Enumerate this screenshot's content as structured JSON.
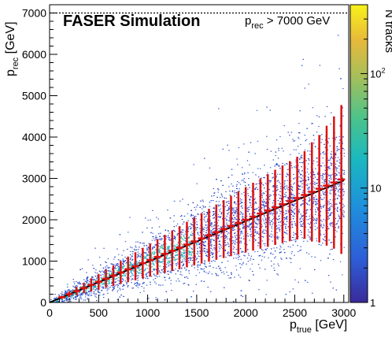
{
  "chart_data": {
    "type": "scatter",
    "title": "FASER Simulation",
    "annotation": {
      "text_main": "p",
      "text_sub": "rec",
      "text_rest": " > 7000 GeV"
    },
    "xlabel": {
      "main": "p",
      "sub": "true",
      "unit": " [GeV]"
    },
    "ylabel": {
      "main": "p",
      "sub": "rec",
      "unit": " [GeV]"
    },
    "xlim": [
      0,
      3050
    ],
    "ylim": [
      0,
      7200
    ],
    "x_ticks": [
      0,
      500,
      1000,
      1500,
      2000,
      2500,
      3000
    ],
    "y_ticks": [
      0,
      1000,
      2000,
      3000,
      4000,
      5000,
      6000,
      7000
    ],
    "cutoff_line_y": 7000,
    "colorbar": {
      "label": "N tracks",
      "scale": "log",
      "range": [
        1,
        400
      ],
      "ticks": [
        {
          "value": 1,
          "label": "1"
        },
        {
          "value": 10,
          "label": "10"
        },
        {
          "value": 100,
          "label": "10",
          "exp": "2"
        }
      ]
    },
    "fit_line": {
      "x": [
        0,
        3000
      ],
      "y": [
        0,
        2950
      ]
    },
    "profile": {
      "x": [
        125,
        200,
        275,
        350,
        425,
        500,
        575,
        650,
        725,
        800,
        875,
        950,
        1025,
        1100,
        1175,
        1250,
        1325,
        1400,
        1475,
        1550,
        1625,
        1700,
        1775,
        1850,
        1925,
        2000,
        2075,
        2150,
        2225,
        2300,
        2375,
        2450,
        2525,
        2600,
        2675,
        2750,
        2825,
        2900,
        2975
      ],
      "mean": [
        125,
        200,
        275,
        350,
        425,
        500,
        575,
        650,
        725,
        800,
        875,
        950,
        1025,
        1100,
        1175,
        1250,
        1325,
        1400,
        1475,
        1550,
        1625,
        1700,
        1775,
        1850,
        1925,
        2000,
        2075,
        2150,
        2225,
        2300,
        2375,
        2450,
        2525,
        2600,
        2675,
        2750,
        2825,
        2900,
        2975
      ],
      "err": [
        40,
        70,
        100,
        130,
        160,
        190,
        220,
        250,
        280,
        310,
        340,
        370,
        400,
        430,
        460,
        490,
        520,
        550,
        580,
        610,
        640,
        670,
        700,
        730,
        760,
        790,
        820,
        850,
        880,
        910,
        940,
        970,
        1000,
        1060,
        1200,
        1300,
        1450,
        1600,
        1800
      ]
    },
    "grid": false,
    "legend": "none",
    "colors": {
      "profile": "#dd1111",
      "fit": "#000000",
      "cutoff": "#000000"
    }
  }
}
